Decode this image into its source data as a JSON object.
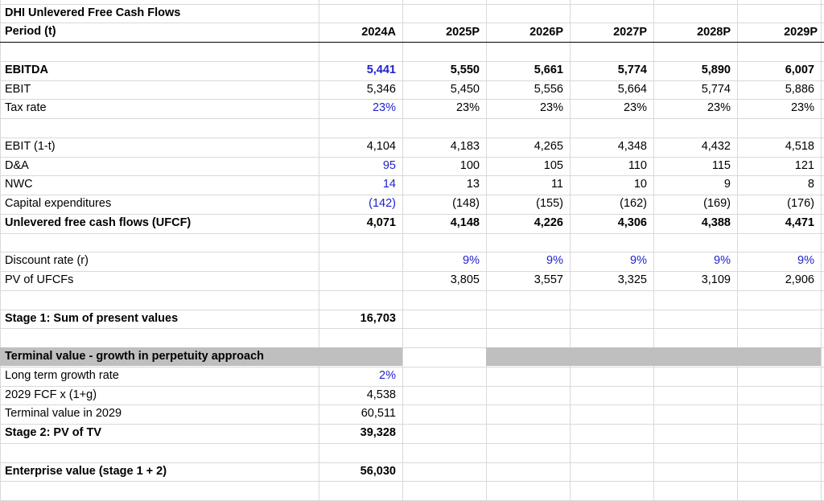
{
  "title": "DHI Unlevered Free Cash Flows",
  "period_label": "Period (t)",
  "periods": [
    "2024A",
    "2025P",
    "2026P",
    "2027P",
    "2028P",
    "2029P"
  ],
  "rows": {
    "ebitda": {
      "label": "EBITDA",
      "values": [
        "5,441",
        "5,550",
        "5,661",
        "5,774",
        "5,890",
        "6,007"
      ]
    },
    "ebit": {
      "label": "EBIT",
      "values": [
        "5,346",
        "5,450",
        "5,556",
        "5,664",
        "5,774",
        "5,886"
      ]
    },
    "tax_rate": {
      "label": "Tax rate",
      "values": [
        "23%",
        "23%",
        "23%",
        "23%",
        "23%",
        "23%"
      ]
    },
    "ebit_1t": {
      "label": "EBIT (1-t)",
      "values": [
        "4,104",
        "4,183",
        "4,265",
        "4,348",
        "4,432",
        "4,518"
      ]
    },
    "da": {
      "label": "D&A",
      "values": [
        "95",
        "100",
        "105",
        "110",
        "115",
        "121"
      ]
    },
    "nwc": {
      "label": "NWC",
      "values": [
        "14",
        "13",
        "11",
        "10",
        "9",
        "8"
      ]
    },
    "capex": {
      "label": "Capital expenditures",
      "values": [
        "(142)",
        "(148)",
        "(155)",
        "(162)",
        "(169)",
        "(176)"
      ]
    },
    "ufcf": {
      "label": "Unlevered free cash flows (UFCF)",
      "values": [
        "4,071",
        "4,148",
        "4,226",
        "4,306",
        "4,388",
        "4,471"
      ]
    },
    "discount": {
      "label": "Discount rate (r)",
      "values": [
        "",
        "9%",
        "9%",
        "9%",
        "9%",
        "9%"
      ]
    },
    "pv_ufcf": {
      "label": "PV of UFCFs",
      "values": [
        "",
        "3,805",
        "3,557",
        "3,325",
        "3,109",
        "2,906"
      ]
    }
  },
  "stage1": {
    "label": "Stage 1: Sum of present values",
    "value": "16,703"
  },
  "terminal": {
    "header": "Terminal value - growth in perpetuity approach",
    "growth_label": "Long term growth rate",
    "growth_value": "2%",
    "fcf_label": "2029 FCF x (1+g)",
    "fcf_value": "4,538",
    "tv_label": "Terminal value in 2029",
    "tv_value": "60,511",
    "stage2_label": "Stage 2: PV of TV",
    "stage2_value": "39,328"
  },
  "enterprise": {
    "label": "Enterprise value (stage 1 + 2)",
    "value": "56,030"
  }
}
